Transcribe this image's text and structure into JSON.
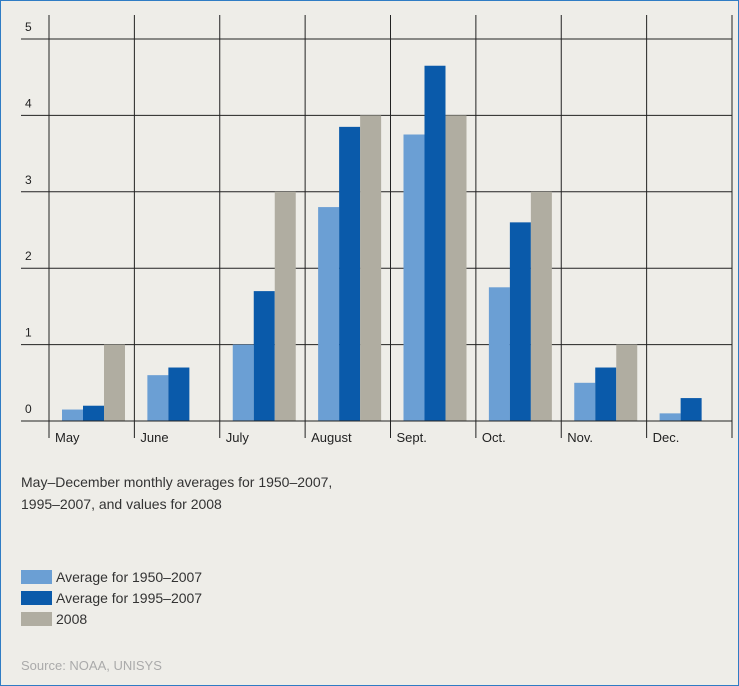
{
  "chart_data": {
    "type": "bar",
    "categories": [
      "May",
      "June",
      "July",
      "August",
      "Sept.",
      "Oct.",
      "Nov.",
      "Dec."
    ],
    "series": [
      {
        "name": "Average for 1950–2007",
        "color": "#6b9fd4",
        "values": [
          0.15,
          0.6,
          1.0,
          2.8,
          3.75,
          1.75,
          0.5,
          0.1
        ]
      },
      {
        "name": "Average for 1995–2007",
        "color": "#0a5aaa",
        "values": [
          0.2,
          0.7,
          1.7,
          3.85,
          4.65,
          2.6,
          0.7,
          0.3
        ]
      },
      {
        "name": "2008",
        "color": "#b0ada1",
        "values": [
          1,
          0,
          3,
          4,
          4,
          3,
          1,
          0
        ]
      }
    ],
    "yticks": [
      0,
      1,
      2,
      3,
      4,
      5
    ],
    "ylim": [
      0,
      5
    ],
    "grid": true,
    "legend_position": "bottom-left"
  },
  "description": "May–December monthly averages for 1950–2007, 1995–2007, and values for 2008",
  "source": "Source: NOAA, UNISYS"
}
